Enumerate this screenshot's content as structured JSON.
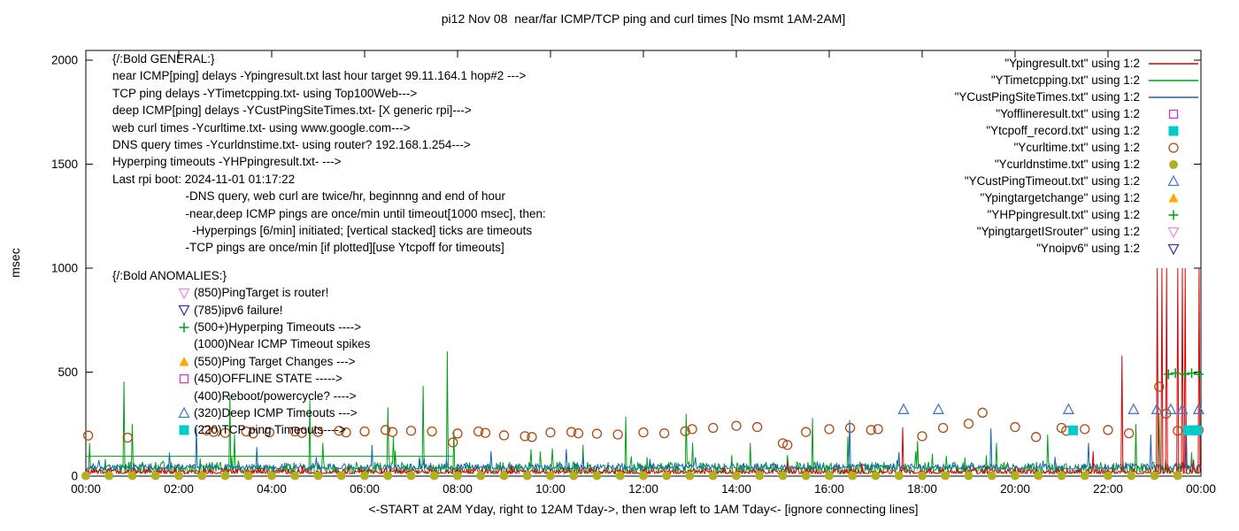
{
  "chart_data": {
    "type": "line",
    "title": "pi12 Nov 08  near/far ICMP/TCP ping and curl times [No msmt 1AM-2AM]",
    "xlabel": "<-START at 2AM Yday, right to 12AM Tday->, then wrap left to 1AM Tday<- [ignore connecting lines]",
    "ylabel": "msec",
    "xlim": [
      0,
      24
    ],
    "ylim": [
      0,
      2000
    ],
    "xtick_values": [
      0,
      2,
      4,
      6,
      8,
      10,
      12,
      14,
      16,
      18,
      20,
      22,
      24
    ],
    "xtick_labels": [
      "00:00",
      "02:00",
      "04:00",
      "06:00",
      "08:00",
      "10:00",
      "12:00",
      "14:00",
      "16:00",
      "18:00",
      "20:00",
      "22:00",
      "00:00"
    ],
    "ytick_values": [
      0,
      500,
      1000,
      1500,
      2000
    ],
    "series": [
      {
        "name": "YTimetcpping.txt",
        "color": "#00a018",
        "base": 14,
        "amp": 55,
        "bump_p": 0.03,
        "bump_s": 1.8,
        "segments": [
          [
            0,
            7.9,
            95
          ]
        ],
        "spikes": [
          [
            0.82,
            455
          ],
          [
            1.0,
            250
          ],
          [
            3.1,
            390
          ],
          [
            3.2,
            200
          ],
          [
            4.82,
            365
          ],
          [
            5.1,
            160
          ],
          [
            6.5,
            330
          ],
          [
            6.62,
            190
          ],
          [
            7.26,
            435
          ],
          [
            7.78,
            600
          ],
          [
            7.92,
            220
          ],
          [
            9.58,
            130
          ],
          [
            10.7,
            150
          ],
          [
            11.62,
            285
          ],
          [
            12.91,
            300
          ],
          [
            13.05,
            160
          ],
          [
            14.3,
            160
          ],
          [
            15.64,
            280
          ],
          [
            16.4,
            190
          ],
          [
            17.9,
            170
          ],
          [
            19.6,
            160
          ],
          [
            20.7,
            200
          ],
          [
            22.6,
            250
          ],
          [
            23.1,
            300
          ]
        ]
      },
      {
        "name": "YCustPingSiteTimes.txt",
        "color": "#1464b4",
        "base": 34,
        "amp": 26,
        "bump_p": 0.02,
        "bump_s": 2.5,
        "segments": [],
        "spikes": [
          [
            2.38,
            230
          ],
          [
            3.67,
            140
          ],
          [
            6.15,
            150
          ],
          [
            8.72,
            120
          ],
          [
            10.34,
            130
          ],
          [
            16.44,
            270
          ],
          [
            19.49,
            230
          ],
          [
            21.58,
            160
          ],
          [
            22.91,
            200
          ],
          [
            23.67,
            300
          ]
        ]
      },
      {
        "name": "Ypingresult.txt",
        "color": "#dd0000",
        "base": 12,
        "amp": 26,
        "bump_p": 0.01,
        "bump_s": 2.0,
        "segments": [],
        "spikes": [
          [
            17.58,
            235
          ],
          [
            21.68,
            120
          ],
          [
            22.3,
            580
          ],
          [
            23.05,
            1000
          ],
          [
            23.15,
            1000
          ],
          [
            23.25,
            1000
          ],
          [
            23.5,
            1000
          ],
          [
            23.6,
            1000
          ],
          [
            23.65,
            1000
          ],
          [
            23.95,
            1000
          ]
        ]
      }
    ],
    "markers": [
      {
        "name": "Ycurltime.txt",
        "shape": "circle-open",
        "color": "#b04a10",
        "points": [
          [
            0.05,
            195
          ],
          [
            0.9,
            185
          ],
          [
            2.6,
            220
          ],
          [
            2.75,
            212
          ],
          [
            3.0,
            208
          ],
          [
            3.45,
            215
          ],
          [
            3.6,
            205
          ],
          [
            3.95,
            210
          ],
          [
            4.5,
            215
          ],
          [
            4.65,
            208
          ],
          [
            5.0,
            212
          ],
          [
            5.45,
            218
          ],
          [
            5.6,
            210
          ],
          [
            6.0,
            215
          ],
          [
            6.45,
            222
          ],
          [
            6.6,
            212
          ],
          [
            7.0,
            218
          ],
          [
            7.45,
            215
          ],
          [
            7.9,
            162
          ],
          [
            8.0,
            205
          ],
          [
            8.45,
            215
          ],
          [
            8.6,
            208
          ],
          [
            9.0,
            196
          ],
          [
            9.45,
            192
          ],
          [
            9.6,
            188
          ],
          [
            10.0,
            210
          ],
          [
            10.45,
            212
          ],
          [
            10.6,
            206
          ],
          [
            11.0,
            204
          ],
          [
            11.45,
            200
          ],
          [
            12.0,
            210
          ],
          [
            12.45,
            206
          ],
          [
            12.9,
            216
          ],
          [
            13.05,
            226
          ],
          [
            13.5,
            232
          ],
          [
            14.0,
            242
          ],
          [
            14.45,
            236
          ],
          [
            15.0,
            158
          ],
          [
            15.1,
            150
          ],
          [
            15.5,
            212
          ],
          [
            16.0,
            226
          ],
          [
            16.45,
            232
          ],
          [
            16.9,
            222
          ],
          [
            17.05,
            226
          ],
          [
            18.0,
            192
          ],
          [
            18.45,
            232
          ],
          [
            19.0,
            252
          ],
          [
            19.3,
            305
          ],
          [
            20.0,
            236
          ],
          [
            20.45,
            188
          ],
          [
            21.0,
            232
          ],
          [
            21.1,
            218
          ],
          [
            21.5,
            226
          ],
          [
            22.0,
            222
          ],
          [
            22.45,
            206
          ],
          [
            23.1,
            430
          ],
          [
            23.25,
            300
          ],
          [
            23.5,
            218
          ],
          [
            23.95,
            222
          ]
        ]
      },
      {
        "name": "Ycurldnstime.txt",
        "shape": "circle-filled",
        "color": "#b0b020",
        "gen": {
          "from": 0,
          "to": 23.9,
          "step": 0.5,
          "value": 2
        },
        "points": []
      },
      {
        "name": "YCustPingTimeout.txt",
        "shape": "triangle-open",
        "color": "#4878c8",
        "points": [
          [
            17.6,
            320
          ],
          [
            18.35,
            320
          ],
          [
            21.15,
            320
          ],
          [
            22.55,
            320
          ],
          [
            23.05,
            320
          ],
          [
            23.35,
            320
          ],
          [
            23.6,
            320
          ],
          [
            23.95,
            320
          ]
        ]
      },
      {
        "name": "Ytcpoff_record.txt",
        "shape": "square-filled",
        "color": "#00cccc",
        "points": [
          [
            21.25,
            220
          ],
          [
            23.72,
            220
          ],
          [
            23.82,
            220
          ],
          [
            23.92,
            220
          ]
        ]
      },
      {
        "name": "YHPpingresult.txt",
        "shape": "plus",
        "color": "#00a018",
        "points": [
          [
            23.3,
            490
          ],
          [
            23.45,
            495
          ],
          [
            23.65,
            490
          ],
          [
            23.8,
            495
          ],
          [
            23.95,
            490
          ]
        ]
      },
      {
        "name": "Yofflineresult.txt",
        "shape": "square-open",
        "color": "#cc33cc",
        "points": []
      },
      {
        "name": "Ypingtargetchange",
        "shape": "triangle-filled",
        "color": "#ffaa00",
        "points": []
      },
      {
        "name": "YpingtargetISrouter",
        "shape": "nabla-open",
        "color": "#df8fdf",
        "points": []
      },
      {
        "name": "Ynoipv6",
        "shape": "nabla-open",
        "color": "#3535b5",
        "points": []
      }
    ]
  },
  "legend": [
    {
      "label": "\"Ypingresult.txt\" using 1:2",
      "glyph": "line",
      "color": "#dd0000"
    },
    {
      "label": "\"YTimetcpping.txt\" using 1:2",
      "glyph": "line",
      "color": "#00a018"
    },
    {
      "label": "\"YCustPingSiteTimes.txt\" using 1:2",
      "glyph": "line",
      "color": "#1464b4"
    },
    {
      "label": "\"Yofflineresult.txt\" using 1:2",
      "glyph": "square-open",
      "color": "#cc33cc"
    },
    {
      "label": "\"Ytcpoff_record.txt\" using 1:2",
      "glyph": "square-filled",
      "color": "#00cccc"
    },
    {
      "label": "\"Ycurltime.txt\" using 1:2",
      "glyph": "circle-open",
      "color": "#b04a10"
    },
    {
      "label": "\"Ycurldnstime.txt\" using 1:2",
      "glyph": "circle-filled",
      "color": "#b0b020"
    },
    {
      "label": "\"YCustPingTimeout.txt\" using 1:2",
      "glyph": "triangle-open",
      "color": "#4878c8"
    },
    {
      "label": "\"Ypingtargetchange\" using 1:2",
      "glyph": "triangle-filled",
      "color": "#ffaa00"
    },
    {
      "label": "\"YHPpingresult.txt\" using 1:2",
      "glyph": "plus",
      "color": "#00a018"
    },
    {
      "label": "\"YpingtargetISrouter\" using 1:2",
      "glyph": "nabla-open",
      "color": "#df8fdf"
    },
    {
      "label": "\"Ynoipv6\" using 1:2",
      "glyph": "nabla-open",
      "color": "#3535b5"
    }
  ],
  "general": {
    "lines": [
      "{/:Bold GENERAL:}",
      "near ICMP[ping] delays -Ypingresult.txt last hour target 99.11.164.1 hop#2 --->",
      "TCP ping delays -YTimetcpping.txt- using Top100Web--->",
      "deep ICMP[ping] delays -YCustPingSiteTimes.txt- [X generic rpi]--->",
      "web curl times -Ycurltime.txt- using www.google.com--->",
      "DNS query times -Ycurldnstime.txt- using router? 192.168.1.254--->",
      "Hyperping timeouts -YHPpingresult.txt- --->",
      "Last rpi boot: 2024-11-01 01:17:22",
      "                      -DNS query, web curl are twice/hr, beginnng and end of hour",
      "                      -near,deep ICMP pings are once/min until timeout[1000 msec], then:",
      "                        -Hyperpings [6/min] initiated; [vertical stacked] ticks are timeouts",
      "                      -TCP pings are once/min [if plotted][use Ytcpoff for timeouts]"
    ]
  },
  "anomalies": {
    "header": "{/:Bold ANOMALIES:}",
    "items": [
      {
        "glyph": "nabla-open",
        "color": "#df8fdf",
        "text": "(850)PingTarget is router!"
      },
      {
        "glyph": "nabla-open",
        "color": "#3535b5",
        "text": "(785)ipv6 failure!"
      },
      {
        "glyph": "plus",
        "color": "#00a018",
        "text": "(500+)Hyperping Timeouts ---->"
      },
      {
        "glyph": "none",
        "color": "",
        "text": "(1000)Near ICMP Timeout spikes"
      },
      {
        "glyph": "triangle-filled",
        "color": "#ffaa00",
        "text": "(550)Ping Target Changes --->"
      },
      {
        "glyph": "square-open",
        "color": "#cc33cc",
        "text": "(450)OFFLINE STATE ----->"
      },
      {
        "glyph": "none",
        "color": "",
        "text": "(400)Reboot/powercycle? ---->"
      },
      {
        "glyph": "triangle-open",
        "color": "#4878c8",
        "text": "(320)Deep ICMP Timeouts --->"
      },
      {
        "glyph": "square-filled",
        "color": "#00cccc",
        "text": "(220)TCP ping Timeouts---->"
      }
    ]
  }
}
